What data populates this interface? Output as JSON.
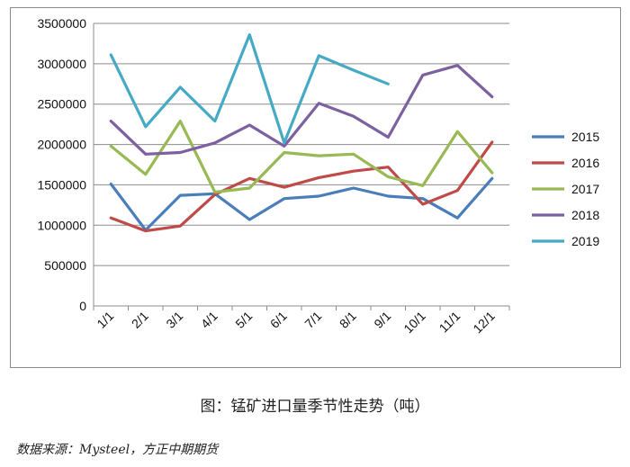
{
  "caption": "图：锰矿进口量季节性走势（吨）",
  "source": "数据来源：Mysteel，方正中期期货",
  "chart_data": {
    "type": "line",
    "categories": [
      "1/1",
      "2/1",
      "3/1",
      "4/1",
      "5/1",
      "6/1",
      "7/1",
      "8/1",
      "9/1",
      "10/1",
      "11/1",
      "12/1"
    ],
    "ylim": [
      0,
      3500000
    ],
    "yticks": [
      "0",
      "500000",
      "1000000",
      "1500000",
      "2000000",
      "2500000",
      "3000000",
      "3500000"
    ],
    "grid": true,
    "legend": "right",
    "series": [
      {
        "name": "2015",
        "color": "#4a7ebb",
        "values": [
          1510000,
          940000,
          1370000,
          1390000,
          1070000,
          1330000,
          1360000,
          1460000,
          1360000,
          1330000,
          1090000,
          1580000
        ]
      },
      {
        "name": "2016",
        "color": "#be4b48",
        "values": [
          1090000,
          930000,
          990000,
          1380000,
          1580000,
          1470000,
          1590000,
          1670000,
          1720000,
          1260000,
          1430000,
          2030000
        ]
      },
      {
        "name": "2017",
        "color": "#98b954",
        "values": [
          1980000,
          1630000,
          2290000,
          1410000,
          1460000,
          1900000,
          1860000,
          1880000,
          1600000,
          1490000,
          2160000,
          1650000
        ]
      },
      {
        "name": "2018",
        "color": "#7d60a0",
        "values": [
          2290000,
          1880000,
          1900000,
          2020000,
          2240000,
          1980000,
          2510000,
          2350000,
          2090000,
          2860000,
          2980000,
          2590000
        ]
      },
      {
        "name": "2019",
        "color": "#46aac5",
        "values": [
          3110000,
          2220000,
          2710000,
          2290000,
          3360000,
          2020000,
          3100000,
          2920000,
          2750000,
          null,
          null,
          null
        ]
      }
    ]
  }
}
